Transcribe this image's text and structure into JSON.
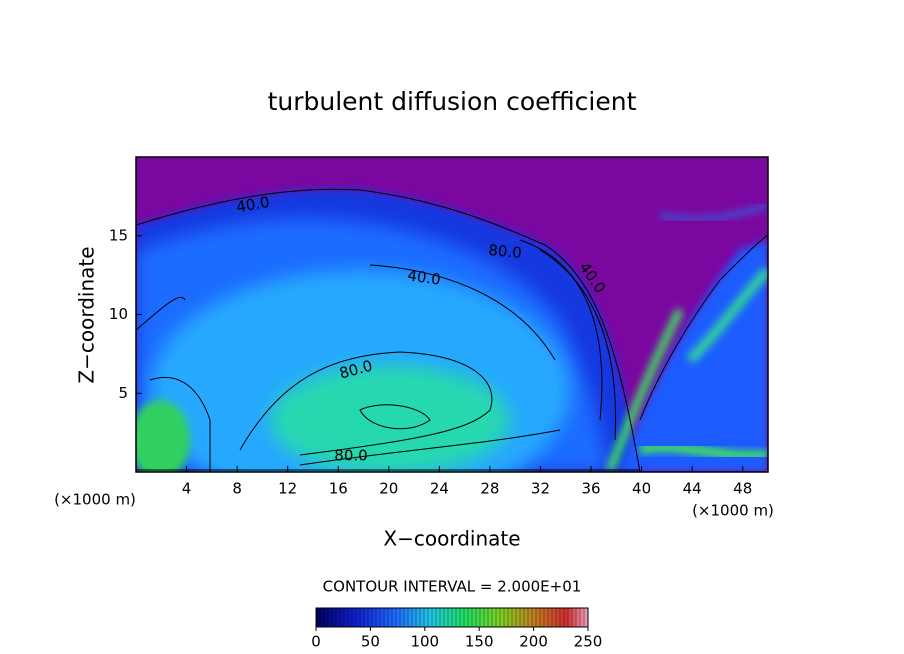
{
  "chart_data": {
    "type": "contour",
    "title": "turbulent diffusion coefficient",
    "x_label": "X−coordinate",
    "y_label": "Z−coordinate",
    "x_unit": "(×1000 m)",
    "y_unit": "(×1000 m)",
    "xlim": [
      0,
      50
    ],
    "xticks": [
      4,
      8,
      12,
      16,
      20,
      24,
      28,
      32,
      36,
      40,
      44,
      48
    ],
    "ylim": [
      0,
      20
    ],
    "yticks": [
      5,
      10,
      15
    ],
    "contour_labels": [
      "40.0",
      "80.0",
      "40.0",
      "40.0",
      "80.0",
      "80.0"
    ],
    "contour_interval": "CONTOUR INTERVAL = 2.000E+01",
    "clim": [
      0,
      250
    ],
    "cticks": [
      0,
      50,
      100,
      150,
      200,
      250
    ]
  }
}
